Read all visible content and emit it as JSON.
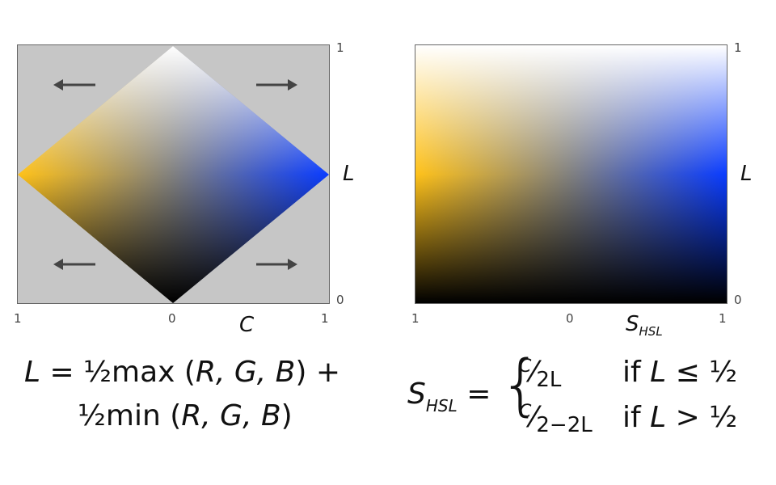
{
  "left_chart": {
    "ticks": {
      "x_left": "1",
      "x_mid": "0",
      "x_right": "1",
      "y_top": "1",
      "y_bottom": "0"
    },
    "x_label": "C",
    "y_label": "L",
    "colors": {
      "panel_bg": "#c6c6c6",
      "yellow": "#ffc21a",
      "blue": "#0a3cff",
      "white": "#ffffff",
      "black": "#000000",
      "arrow": "#444444"
    },
    "arrows": [
      "left-arrow",
      "right-arrow",
      "left-arrow",
      "right-arrow"
    ]
  },
  "right_chart": {
    "ticks": {
      "x_left": "1",
      "x_mid": "0",
      "x_right": "1",
      "y_top": "1",
      "y_bottom": "0"
    },
    "x_label_main": "S",
    "x_label_sub": "HSL",
    "y_label": "L"
  },
  "formula_L": {
    "lhs": "L",
    "line1_rest": " = ½max (",
    "line1_args": "R, G, B",
    "line1_end": ") +",
    "line2_start": "½min (",
    "line2_args": "R, G, B",
    "line2_end": ")"
  },
  "formula_S": {
    "lhs_main": "S",
    "lhs_sub": "HSL",
    "eq": " =",
    "brace": "{",
    "case1_num": "C",
    "case1_slash": "⁄",
    "case1_den": "2L",
    "case1_cond_if": "if ",
    "case1_cond_var": "L",
    "case1_cond_rest": " ≤ ½",
    "case2_num": "C",
    "case2_slash": "⁄",
    "case2_den": "2−2L",
    "case2_cond_if": "if ",
    "case2_cond_var": "L",
    "case2_cond_rest": " > ½"
  }
}
